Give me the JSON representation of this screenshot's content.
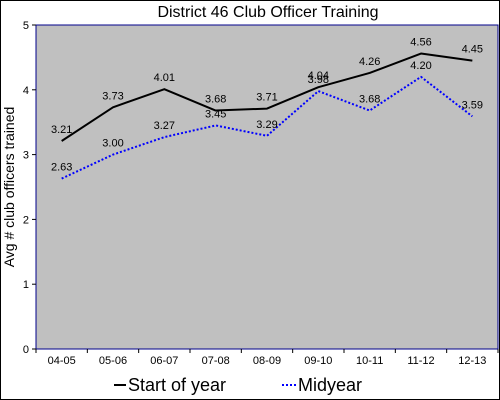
{
  "chart_data": {
    "type": "line",
    "title": "District 46 Club Officer Training",
    "xlabel": "",
    "ylabel": "Avg # club officers trained",
    "ylim": [
      0,
      5
    ],
    "yticks": [
      "0",
      "1",
      "2",
      "3",
      "4",
      "5"
    ],
    "categories": [
      "04-05",
      "05-06",
      "06-07",
      "07-08",
      "08-09",
      "09-10",
      "10-11",
      "11-12",
      "12-13"
    ],
    "series": [
      {
        "name": "Start of year",
        "values": [
          3.21,
          3.73,
          4.01,
          3.68,
          3.71,
          4.04,
          4.26,
          4.56,
          4.45
        ],
        "labels": [
          "3.21",
          "3.73",
          "4.01",
          "3.68",
          "3.71",
          "4.04",
          "4.26",
          "4.56",
          "4.45"
        ],
        "color": "#000000",
        "dash": "solid"
      },
      {
        "name": "Midyear",
        "values": [
          2.63,
          3.0,
          3.27,
          3.45,
          3.29,
          3.98,
          3.68,
          4.2,
          3.59
        ],
        "labels": [
          "2.63",
          "3.00",
          "3.27",
          "3.45",
          "3.29",
          "3.98",
          "3.68",
          "4.20",
          "3.59"
        ],
        "color": "#0000ff",
        "dash": "dotted"
      }
    ],
    "grid": false,
    "plot_background": "#c0c0c0",
    "legend_position": "bottom"
  }
}
